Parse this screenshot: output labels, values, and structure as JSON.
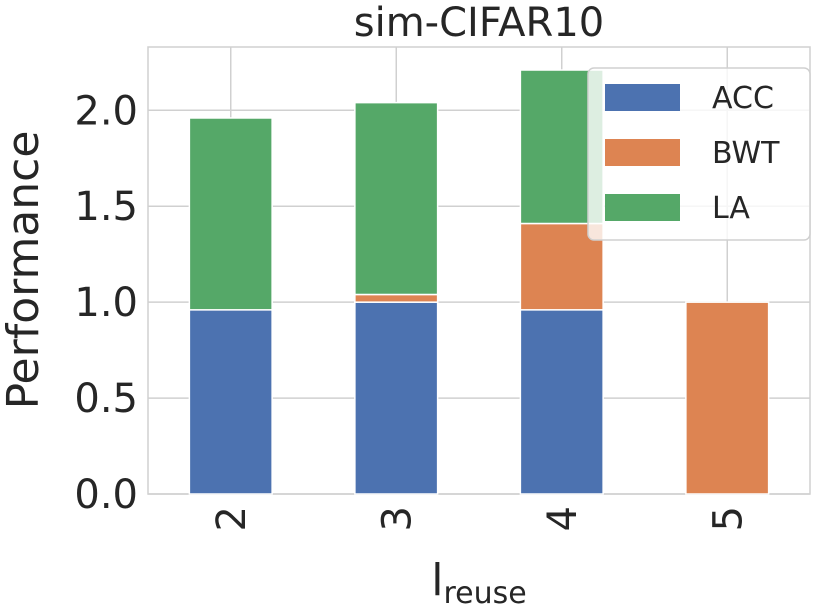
{
  "chart_data": {
    "type": "stacked_bar",
    "title": "sim-CIFAR10",
    "x_label": "l",
    "x_label_subscript": "reuse",
    "y_label": "Performance",
    "categories": [
      "2",
      "3",
      "4",
      "5"
    ],
    "series": [
      {
        "name": "ACC",
        "color": "#4c72b0",
        "values": [
          0.96,
          1.0,
          0.96,
          0
        ]
      },
      {
        "name": "BWT",
        "color": "#dd8452",
        "values": [
          0,
          0.04,
          0.45,
          1.0
        ]
      },
      {
        "name": "LA",
        "color": "#55a868",
        "values": [
          1.0,
          1.0,
          0.8,
          0
        ]
      }
    ],
    "ylim": [
      0,
      2.33
    ],
    "yticks": [
      {
        "value": 0,
        "label": "0.0"
      },
      {
        "value": 0.5,
        "label": "0.5"
      },
      {
        "value": 1,
        "label": "1.0"
      },
      {
        "value": 1.5,
        "label": "1.5"
      },
      {
        "value": 2,
        "label": "2.0"
      }
    ],
    "grid": true,
    "legend": "upper right"
  }
}
